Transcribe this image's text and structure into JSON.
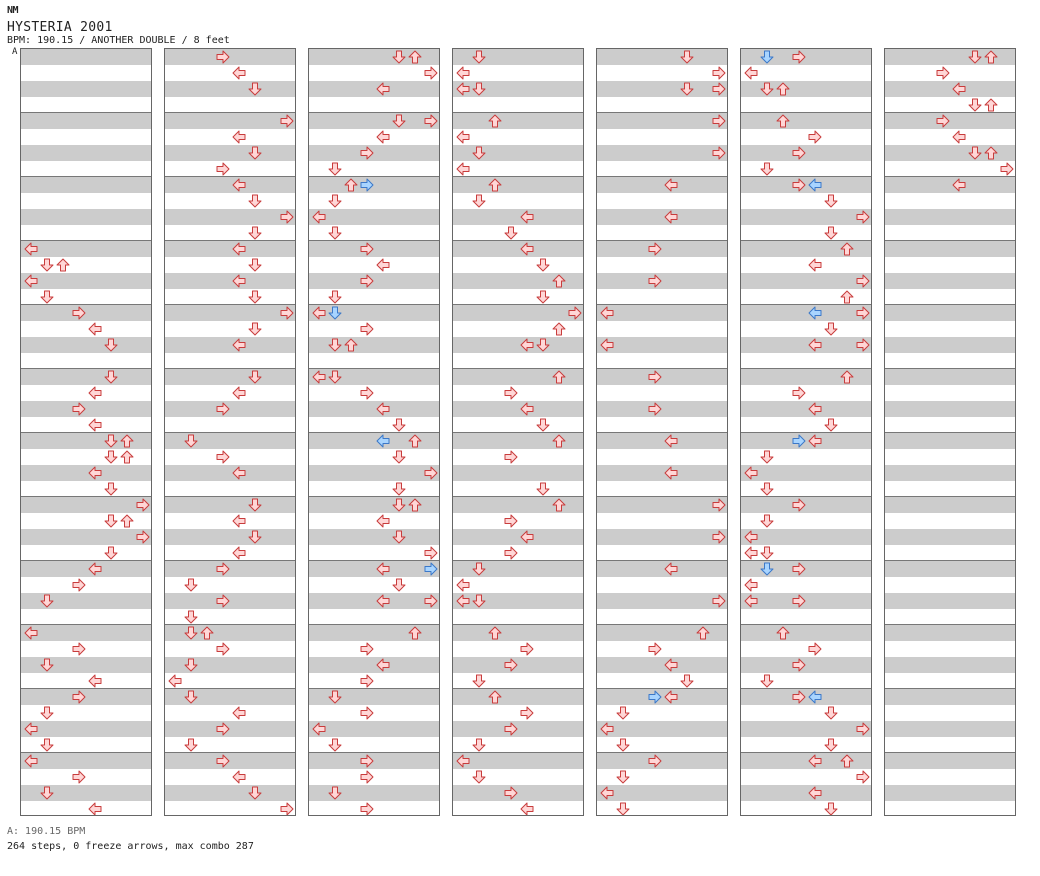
{
  "header": {
    "logo": "NM",
    "title": "HYSTERIA 2001",
    "meta": "BPM: 190.15 / ANOTHER DOUBLE / 8 feet"
  },
  "bpm_marker": {
    "label": "A"
  },
  "footer": {
    "bpm": "A: 190.15 BPM",
    "stats": "264 steps, 0 freeze arrows, max combo 287"
  },
  "colors": {
    "note_fill": "#ffd6d6",
    "note_stroke": "#c83c3c",
    "highlight_fill": "#a8d4ff",
    "highlight_stroke": "#3c78c8",
    "band_gray": "#cccccc"
  },
  "arrow_icons": {
    "L": "left-arrow-icon",
    "D": "down-arrow-icon",
    "U": "up-arrow-icon",
    "R": "right-arrow-icon"
  },
  "panels": [
    [
      [
        12,
        "L",
        0
      ],
      [
        13,
        "D",
        1
      ],
      [
        13,
        "U",
        2
      ],
      [
        14,
        "L",
        0
      ],
      [
        15,
        "D",
        1
      ],
      [
        16,
        "R",
        3
      ],
      [
        17,
        "L",
        4
      ],
      [
        18,
        "D",
        5
      ],
      [
        20,
        "D",
        5
      ],
      [
        21,
        "L",
        4
      ],
      [
        22,
        "R",
        3
      ],
      [
        23,
        "L",
        4
      ],
      [
        24,
        "D",
        5
      ],
      [
        24,
        "U",
        6
      ],
      [
        25,
        "D",
        5
      ],
      [
        25,
        "U",
        6
      ],
      [
        26,
        "L",
        4
      ],
      [
        27,
        "D",
        5
      ],
      [
        28,
        "R",
        7
      ],
      [
        29,
        "D",
        5
      ],
      [
        29,
        "U",
        6
      ],
      [
        30,
        "R",
        7
      ],
      [
        31,
        "D",
        5
      ],
      [
        32,
        "L",
        4
      ],
      [
        33,
        "R",
        3
      ],
      [
        34,
        "D",
        1
      ],
      [
        36,
        "L",
        0
      ],
      [
        37,
        "R",
        3
      ],
      [
        38,
        "D",
        1
      ],
      [
        39,
        "L",
        4
      ],
      [
        40,
        "R",
        3
      ],
      [
        41,
        "D",
        1
      ],
      [
        42,
        "L",
        0
      ],
      [
        43,
        "D",
        1
      ],
      [
        44,
        "L",
        0
      ],
      [
        45,
        "R",
        3
      ],
      [
        46,
        "D",
        1
      ],
      [
        47,
        "L",
        4
      ]
    ],
    [
      [
        0,
        "R",
        3
      ],
      [
        1,
        "L",
        4
      ],
      [
        2,
        "D",
        5
      ],
      [
        4,
        "R",
        7
      ],
      [
        5,
        "L",
        4
      ],
      [
        6,
        "D",
        5
      ],
      [
        7,
        "R",
        3
      ],
      [
        8,
        "L",
        4
      ],
      [
        9,
        "D",
        5
      ],
      [
        10,
        "R",
        7
      ],
      [
        11,
        "D",
        5
      ],
      [
        12,
        "L",
        4
      ],
      [
        13,
        "D",
        5
      ],
      [
        14,
        "L",
        4
      ],
      [
        15,
        "D",
        5
      ],
      [
        16,
        "R",
        7
      ],
      [
        17,
        "D",
        5
      ],
      [
        18,
        "L",
        4
      ],
      [
        20,
        "D",
        5
      ],
      [
        21,
        "L",
        4
      ],
      [
        22,
        "R",
        3
      ],
      [
        24,
        "D",
        1
      ],
      [
        25,
        "R",
        3
      ],
      [
        26,
        "L",
        4
      ],
      [
        28,
        "D",
        5
      ],
      [
        29,
        "L",
        4
      ],
      [
        30,
        "D",
        5
      ],
      [
        31,
        "L",
        4
      ],
      [
        32,
        "R",
        3
      ],
      [
        33,
        "D",
        1
      ],
      [
        34,
        "R",
        3
      ],
      [
        35,
        "D",
        1
      ],
      [
        36,
        "D",
        1
      ],
      [
        36,
        "U",
        2
      ],
      [
        37,
        "R",
        3
      ],
      [
        38,
        "D",
        1
      ],
      [
        39,
        "L",
        0
      ],
      [
        40,
        "D",
        1
      ],
      [
        41,
        "L",
        4
      ],
      [
        42,
        "R",
        3
      ],
      [
        43,
        "D",
        1
      ],
      [
        44,
        "R",
        3
      ],
      [
        45,
        "L",
        4
      ],
      [
        46,
        "D",
        5
      ],
      [
        47,
        "R",
        7
      ]
    ],
    [
      [
        0,
        "D",
        5
      ],
      [
        0,
        "U",
        6
      ],
      [
        1,
        "R",
        7
      ],
      [
        2,
        "L",
        4
      ],
      [
        4,
        "D",
        5
      ],
      [
        4,
        "R",
        7
      ],
      [
        5,
        "L",
        4
      ],
      [
        6,
        "R",
        3
      ],
      [
        7,
        "D",
        1
      ],
      [
        8,
        "U",
        2
      ],
      [
        8,
        "R",
        3,
        1
      ],
      [
        9,
        "D",
        1
      ],
      [
        10,
        "L",
        0
      ],
      [
        11,
        "D",
        1
      ],
      [
        12,
        "R",
        3
      ],
      [
        13,
        "L",
        4
      ],
      [
        14,
        "R",
        3
      ],
      [
        15,
        "D",
        1
      ],
      [
        16,
        "L",
        0
      ],
      [
        16,
        "D",
        1,
        1
      ],
      [
        17,
        "R",
        3
      ],
      [
        18,
        "D",
        1
      ],
      [
        18,
        "U",
        2
      ],
      [
        20,
        "L",
        0
      ],
      [
        20,
        "D",
        1
      ],
      [
        21,
        "R",
        3
      ],
      [
        22,
        "L",
        4
      ],
      [
        23,
        "D",
        5
      ],
      [
        24,
        "L",
        4,
        1
      ],
      [
        24,
        "U",
        6
      ],
      [
        25,
        "D",
        5
      ],
      [
        26,
        "R",
        7
      ],
      [
        27,
        "D",
        5
      ],
      [
        28,
        "D",
        5
      ],
      [
        28,
        "U",
        6
      ],
      [
        29,
        "L",
        4
      ],
      [
        30,
        "D",
        5
      ],
      [
        31,
        "R",
        7
      ],
      [
        32,
        "L",
        4
      ],
      [
        32,
        "R",
        7,
        1
      ],
      [
        33,
        "D",
        5
      ],
      [
        34,
        "L",
        4
      ],
      [
        34,
        "R",
        7
      ],
      [
        36,
        "U",
        6
      ],
      [
        37,
        "R",
        3
      ],
      [
        38,
        "L",
        4
      ],
      [
        39,
        "R",
        3
      ],
      [
        40,
        "D",
        1
      ],
      [
        41,
        "R",
        3
      ],
      [
        42,
        "L",
        0
      ],
      [
        43,
        "D",
        1
      ],
      [
        44,
        "R",
        3
      ],
      [
        45,
        "R",
        3
      ],
      [
        46,
        "D",
        1
      ],
      [
        47,
        "R",
        3
      ]
    ],
    [
      [
        0,
        "D",
        1
      ],
      [
        1,
        "L",
        0
      ],
      [
        2,
        "L",
        0
      ],
      [
        2,
        "D",
        1
      ],
      [
        4,
        "U",
        2
      ],
      [
        5,
        "L",
        0
      ],
      [
        6,
        "D",
        1
      ],
      [
        7,
        "L",
        0
      ],
      [
        8,
        "U",
        2
      ],
      [
        9,
        "D",
        1
      ],
      [
        10,
        "L",
        4
      ],
      [
        11,
        "D",
        3
      ],
      [
        12,
        "L",
        4
      ],
      [
        13,
        "D",
        5
      ],
      [
        14,
        "U",
        6
      ],
      [
        15,
        "D",
        5
      ],
      [
        16,
        "R",
        7
      ],
      [
        17,
        "U",
        6
      ],
      [
        18,
        "L",
        4
      ],
      [
        18,
        "D",
        5
      ],
      [
        20,
        "U",
        6
      ],
      [
        21,
        "R",
        3
      ],
      [
        22,
        "L",
        4
      ],
      [
        23,
        "D",
        5
      ],
      [
        24,
        "U",
        6
      ],
      [
        25,
        "R",
        3
      ],
      [
        27,
        "D",
        5
      ],
      [
        28,
        "U",
        6
      ],
      [
        29,
        "R",
        3
      ],
      [
        30,
        "L",
        4
      ],
      [
        31,
        "R",
        3
      ],
      [
        32,
        "D",
        1
      ],
      [
        33,
        "L",
        0
      ],
      [
        34,
        "L",
        0
      ],
      [
        34,
        "D",
        1
      ],
      [
        36,
        "U",
        2
      ],
      [
        37,
        "R",
        4
      ],
      [
        38,
        "R",
        3
      ],
      [
        39,
        "D",
        1
      ],
      [
        40,
        "U",
        2
      ],
      [
        41,
        "R",
        4
      ],
      [
        42,
        "R",
        3
      ],
      [
        43,
        "D",
        1
      ],
      [
        44,
        "L",
        0
      ],
      [
        45,
        "D",
        1
      ],
      [
        46,
        "R",
        3
      ],
      [
        47,
        "L",
        4
      ]
    ],
    [
      [
        0,
        "D",
        5
      ],
      [
        1,
        "R",
        7
      ],
      [
        2,
        "D",
        5
      ],
      [
        2,
        "R",
        7
      ],
      [
        4,
        "R",
        7
      ],
      [
        6,
        "R",
        7
      ],
      [
        8,
        "L",
        4
      ],
      [
        10,
        "L",
        4
      ],
      [
        12,
        "R",
        3
      ],
      [
        14,
        "R",
        3
      ],
      [
        16,
        "L",
        0
      ],
      [
        18,
        "L",
        0
      ],
      [
        20,
        "R",
        3
      ],
      [
        22,
        "R",
        3
      ],
      [
        24,
        "L",
        4
      ],
      [
        26,
        "L",
        4
      ],
      [
        28,
        "R",
        7
      ],
      [
        30,
        "R",
        7
      ],
      [
        32,
        "L",
        4
      ],
      [
        34,
        "R",
        7
      ],
      [
        36,
        "U",
        6
      ],
      [
        37,
        "R",
        3
      ],
      [
        38,
        "L",
        4
      ],
      [
        39,
        "D",
        5
      ],
      [
        40,
        "L",
        4
      ],
      [
        40,
        "R",
        3,
        1
      ],
      [
        41,
        "D",
        1
      ],
      [
        42,
        "L",
        0
      ],
      [
        43,
        "D",
        1
      ],
      [
        44,
        "R",
        3
      ],
      [
        45,
        "D",
        1
      ],
      [
        46,
        "L",
        0
      ],
      [
        47,
        "D",
        1
      ]
    ],
    [
      [
        0,
        "D",
        1,
        1
      ],
      [
        0,
        "R",
        3
      ],
      [
        1,
        "L",
        0
      ],
      [
        2,
        "D",
        1
      ],
      [
        2,
        "U",
        2
      ],
      [
        4,
        "U",
        2
      ],
      [
        5,
        "R",
        4
      ],
      [
        6,
        "R",
        3
      ],
      [
        7,
        "D",
        1
      ],
      [
        8,
        "R",
        3
      ],
      [
        8,
        "L",
        4,
        1
      ],
      [
        9,
        "D",
        5
      ],
      [
        10,
        "R",
        7
      ],
      [
        11,
        "D",
        5
      ],
      [
        12,
        "U",
        6
      ],
      [
        13,
        "L",
        4
      ],
      [
        14,
        "R",
        7
      ],
      [
        15,
        "U",
        6
      ],
      [
        16,
        "R",
        7
      ],
      [
        16,
        "L",
        4,
        1
      ],
      [
        17,
        "D",
        5
      ],
      [
        18,
        "L",
        4
      ],
      [
        18,
        "R",
        7
      ],
      [
        20,
        "U",
        6
      ],
      [
        21,
        "R",
        3
      ],
      [
        22,
        "L",
        4
      ],
      [
        23,
        "D",
        5
      ],
      [
        24,
        "L",
        4
      ],
      [
        24,
        "R",
        3,
        1
      ],
      [
        25,
        "D",
        1
      ],
      [
        26,
        "L",
        0
      ],
      [
        27,
        "D",
        1
      ],
      [
        28,
        "R",
        3
      ],
      [
        29,
        "D",
        1
      ],
      [
        30,
        "L",
        0
      ],
      [
        31,
        "L",
        0
      ],
      [
        31,
        "D",
        1
      ],
      [
        32,
        "D",
        1,
        1
      ],
      [
        32,
        "R",
        3
      ],
      [
        33,
        "L",
        0
      ],
      [
        34,
        "L",
        0
      ],
      [
        34,
        "R",
        3
      ],
      [
        36,
        "U",
        2
      ],
      [
        37,
        "R",
        4
      ],
      [
        38,
        "R",
        3
      ],
      [
        39,
        "D",
        1
      ],
      [
        40,
        "R",
        3
      ],
      [
        40,
        "L",
        4,
        1
      ],
      [
        41,
        "D",
        5
      ],
      [
        42,
        "R",
        7
      ],
      [
        43,
        "D",
        5
      ],
      [
        44,
        "L",
        4
      ],
      [
        44,
        "U",
        6
      ],
      [
        45,
        "R",
        7
      ],
      [
        46,
        "L",
        4
      ],
      [
        47,
        "D",
        5
      ]
    ],
    [
      [
        0,
        "D",
        5
      ],
      [
        0,
        "U",
        6
      ],
      [
        1,
        "R",
        3
      ],
      [
        2,
        "L",
        4
      ],
      [
        3,
        "D",
        5
      ],
      [
        3,
        "U",
        6
      ],
      [
        4,
        "R",
        3
      ],
      [
        5,
        "L",
        4
      ],
      [
        6,
        "D",
        5
      ],
      [
        6,
        "U",
        6
      ],
      [
        7,
        "R",
        7
      ],
      [
        8,
        "L",
        4
      ]
    ]
  ]
}
